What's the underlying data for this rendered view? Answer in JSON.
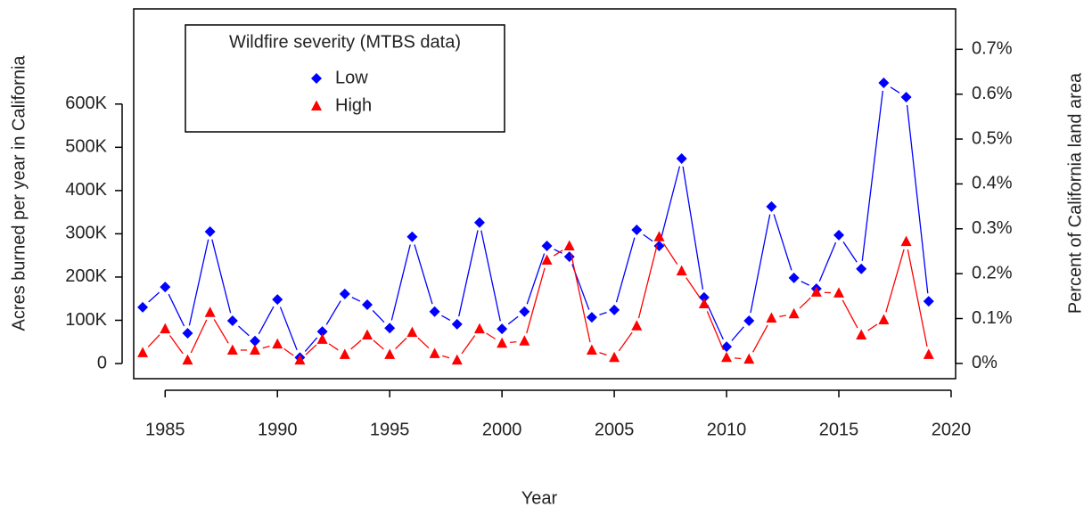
{
  "chart_data": {
    "type": "line",
    "x_label": "Year",
    "y_label": "Acres burned per year in California",
    "y2_label": "Percent of California land area",
    "x": [
      1984,
      1985,
      1986,
      1987,
      1988,
      1989,
      1990,
      1991,
      1992,
      1993,
      1994,
      1995,
      1996,
      1997,
      1998,
      1999,
      2000,
      2001,
      2002,
      2003,
      2004,
      2005,
      2006,
      2007,
      2008,
      2009,
      2010,
      2011,
      2012,
      2013,
      2014,
      2015,
      2016,
      2017,
      2018,
      2019
    ],
    "series": [
      {
        "name": "Low",
        "color": "#0000ff",
        "marker": "diamond",
        "values": [
          130000,
          177000,
          70000,
          305000,
          99000,
          52000,
          148000,
          14000,
          74000,
          161000,
          136000,
          82000,
          293000,
          120000,
          91000,
          326000,
          80000,
          120000,
          272000,
          247000,
          107000,
          124000,
          309000,
          272000,
          474000,
          153000,
          39000,
          99000,
          363000,
          198000,
          173000,
          297000,
          219000,
          649000,
          616000,
          144000
        ]
      },
      {
        "name": "High",
        "color": "#ff0000",
        "marker": "triangle",
        "values": [
          25000,
          80000,
          8000,
          118000,
          31000,
          31000,
          45000,
          8000,
          56000,
          21000,
          66000,
          21000,
          72000,
          23000,
          8000,
          80000,
          47000,
          52000,
          239000,
          272000,
          31000,
          14000,
          87000,
          293000,
          214000,
          138000,
          14000,
          10000,
          105000,
          115000,
          165000,
          163000,
          66000,
          101000,
          282000,
          21000
        ]
      }
    ],
    "legend_title": "Wildfire severity (MTBS data)",
    "legend": "top-left",
    "xlim": [
      1983.6,
      2020.2
    ],
    "xticks": [
      1985,
      1990,
      1995,
      2000,
      2005,
      2010,
      2015,
      2020
    ],
    "ylim": [
      -35000,
      820000
    ],
    "yticks": [
      0,
      {
        "value": 100000,
        "label": "100K"
      },
      {
        "value": 200000,
        "label": "200K"
      },
      {
        "value": 300000,
        "label": "300K"
      },
      {
        "value": 400000,
        "label": "400K"
      },
      {
        "value": 500000,
        "label": "500K"
      },
      {
        "value": 600000,
        "label": "600K"
      }
    ],
    "y2lim": [
      -0.034,
      0.79
    ],
    "y2ticks": [
      {
        "value": 0,
        "label": "0%"
      },
      {
        "value": 0.1,
        "label": "0.1%"
      },
      {
        "value": 0.2,
        "label": "0.2%"
      },
      {
        "value": 0.3,
        "label": "0.3%"
      },
      {
        "value": 0.4,
        "label": "0.4%"
      },
      {
        "value": 0.5,
        "label": "0.5%"
      },
      {
        "value": 0.6,
        "label": "0.6%"
      },
      {
        "value": 0.7,
        "label": "0.7%"
      }
    ]
  }
}
